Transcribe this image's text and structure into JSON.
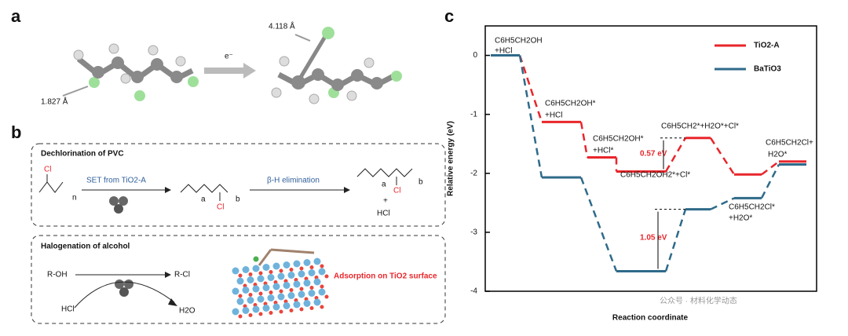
{
  "panel_a": {
    "label": "a",
    "distance_long": "4.118 Å",
    "distance_short": "1.827 Å",
    "arrow_label": "e⁻"
  },
  "panel_b": {
    "label": "b",
    "dechlorination": {
      "title": "Dechlorination of PVC",
      "step1": "SET from TiO2-A",
      "step2": "β-H elimination",
      "reactant_cl": "Cl",
      "reactant_n": "n",
      "mid_a": "a",
      "mid_b": "b",
      "mid_cl": "Cl",
      "prod_a": "a",
      "prod_b": "b",
      "prod_cl": "Cl",
      "plus": "+",
      "hcl": "HCl"
    },
    "halogenation": {
      "title": "Halogenation of alcohol",
      "reactant": "R-OH",
      "product": "R-Cl",
      "hcl": "HCl",
      "water": "H2O",
      "adsorption": "Adsorption on TiO2 surface"
    }
  },
  "chart_data": {
    "type": "energy_level",
    "label": "c",
    "ylabel": "Relative energy (eV)",
    "xlabel": "Reaction coordinate",
    "categories": [
      null,
      null,
      null,
      null,
      null,
      null,
      null
    ],
    "series": [
      {
        "name": "TiO2-A",
        "color": "#e8262b",
        "values": [
          0,
          -1.13,
          -1.73,
          -1.97,
          -1.4,
          -2.02,
          -1.8
        ]
      },
      {
        "name": "BaTiO3",
        "color": "#2f6a89",
        "values": [
          0,
          -2.07,
          null,
          -3.66,
          -2.61,
          -2.42,
          -1.85
        ]
      }
    ],
    "ylim": [
      -4,
      0.5
    ],
    "yticks": [
      -4,
      -3,
      -2,
      -1,
      0
    ],
    "legend": "upper right",
    "annotations": [
      "C6H5CH2OH",
      "+HCl",
      "C6H5CH2OH*",
      "+HCl",
      "C6H5CH2OH*",
      "+HCl*",
      "C6H5CH2*+H2O*+Cl*",
      "C6H5CH2OH2*+Cl*",
      "C6H5CH2Cl+",
      "H2O*",
      "C6H5CH2Cl*",
      "+H2O*",
      "0.57 eV",
      "1.05 eV"
    ]
  },
  "watermark": "公众号 · 材料化学动态"
}
